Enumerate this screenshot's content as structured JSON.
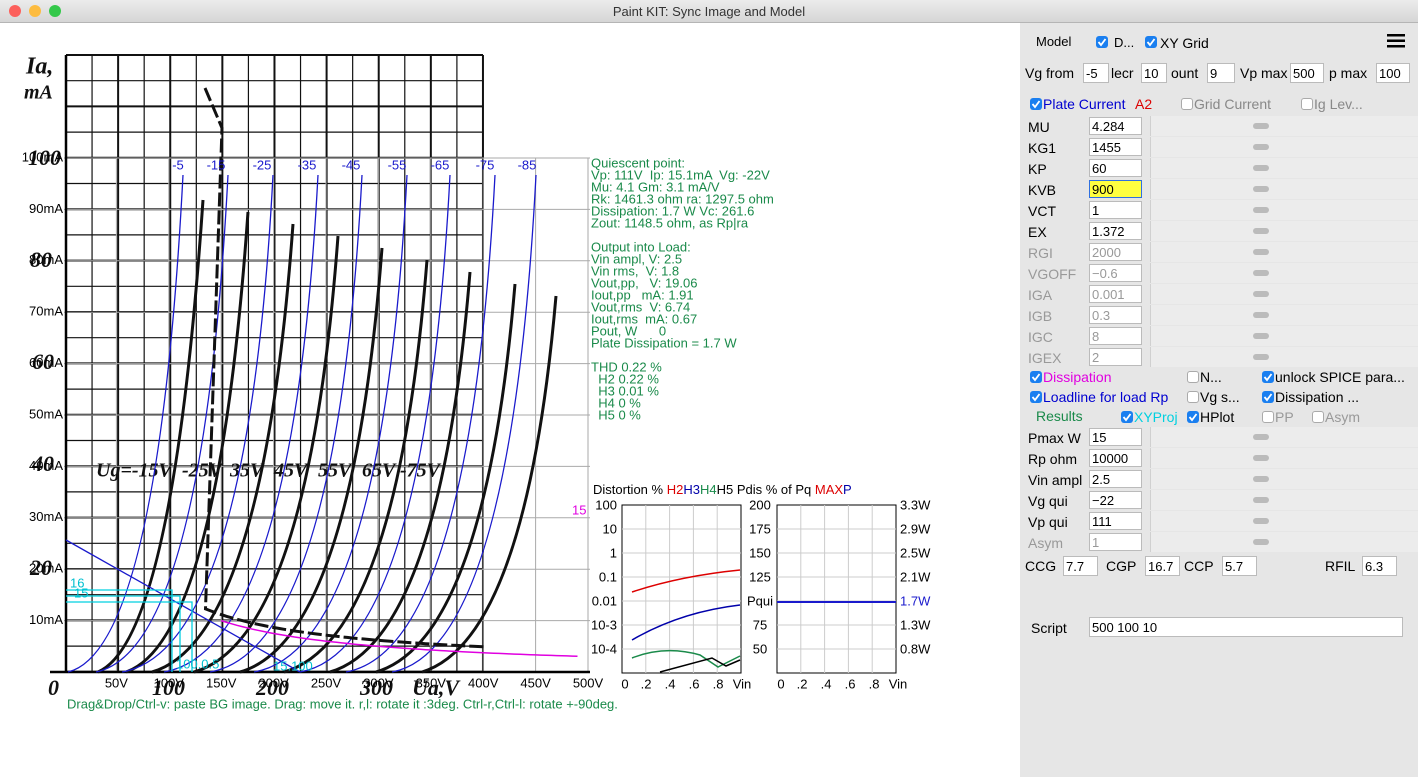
{
  "window": {
    "title": "Paint KIT: Sync Image and Model"
  },
  "plot": {
    "y_labels": [
      "100mA",
      "90mA",
      "80mA",
      "70mA",
      "60mA",
      "50mA",
      "40mA",
      "30mA",
      "20mA",
      "10mA"
    ],
    "x_labels": [
      "50V",
      "100V",
      "150V",
      "200V",
      "250V",
      "300V",
      "350V",
      "400V",
      "450V",
      "500V"
    ],
    "curve_labels": [
      "-5",
      "-15",
      "-25",
      "-35",
      "-45",
      "-55",
      "-65",
      "-75",
      "-85"
    ],
    "dissipation_label": "15",
    "scan_labels": {
      "ia": "Ia,",
      "ma": "mA",
      "y100": "100",
      "y80": "80",
      "y60": "60",
      "y40": "40",
      "y20": "20",
      "x0": "0",
      "x100": "100",
      "x200": "200",
      "x300": "300",
      "ua": "Ua,V",
      "ug": [
        "Ug=-15V",
        "-25V",
        "35V",
        "45V",
        "55V",
        "65V",
        "-75V"
      ]
    },
    "cyan_labels": [
      "16",
      "15",
      "100.0.5",
      "15.100"
    ],
    "info": [
      "Quiescent point:",
      "Vp: 111V  Ip: 15.1mA  Vg: -22V",
      "Mu: 4.1 Gm: 3.1 mA/V",
      "Rk: 1461.3 ohm ra: 1297.5 ohm",
      "Dissipation: 1.7 W Vc: 261.6",
      "Zout: 1148.5 ohm, as Rp|ra",
      "Output into Load:",
      "Vin ampl, V: 2.5",
      "Vin rms,  V: 1.8",
      "Vout,pp,   V: 19.06",
      "Iout,pp   mA: 1.91",
      "Vout,rms  V: 6.74",
      "Iout,rms  mA: 0.67",
      "Pout, W      0",
      "Plate Dissipation = 1.7 W",
      "THD 0.22 %",
      "  H2 0.22 %",
      "  H3 0.01 %",
      "  H4 0 %",
      "  H5 0 %"
    ],
    "hint": "Drag&Drop/Ctrl-v: paste BG image. Drag: move it. r,l: rotate it :3deg. Ctrl-r,Ctrl-l: rotate +-90deg."
  },
  "distortion": {
    "title": [
      {
        "text": "Distortion % ",
        "color": "#000"
      },
      {
        "text": "H2",
        "color": "#d00"
      },
      {
        "text": "H3",
        "color": "#00a"
      },
      {
        "text": "H4",
        "color": "#1a8a4a"
      },
      {
        "text": "H5",
        "color": "#000"
      },
      {
        "text": " Pdis % of Pq ",
        "color": "#000"
      },
      {
        "text": "MAX",
        "color": "#d00"
      },
      {
        "text": "P",
        "color": "#00a"
      }
    ],
    "left_ticks": [
      "100",
      "10",
      "1",
      "0.1",
      "0.01",
      "10-3",
      "10-4"
    ],
    "mid_ticks": [
      "200",
      "175",
      "150",
      "125",
      "Pqui",
      "75",
      "50"
    ],
    "right_ticks": [
      "3.3W",
      "2.9W",
      "2.5W",
      "2.1W",
      "1.7W",
      "1.3W",
      "0.8W"
    ],
    "x_ticks": [
      "0",
      ".2",
      ".4",
      ".6",
      ".8",
      "Vin"
    ]
  },
  "panel": {
    "model": "Model",
    "d": "D...",
    "xy": "XY Grid",
    "range": [
      {
        "label": "Vg from",
        "value": "-5"
      },
      {
        "label": "lecr",
        "value": "10"
      },
      {
        "label": "ount",
        "value": "9"
      },
      {
        "label": "Vp max",
        "value": "500"
      },
      {
        "label": "p max",
        "value": "100"
      }
    ],
    "curr_checks": [
      {
        "label": "Plate Current",
        "checked": true,
        "color": "#0000d0"
      },
      {
        "label": "Grid Current",
        "checked": false,
        "color": "#888"
      },
      {
        "label": "Ig Lev...",
        "checked": false,
        "color": "#888"
      }
    ],
    "a2": "A2",
    "params": [
      {
        "name": "MU",
        "value": "4.284",
        "disabled": false
      },
      {
        "name": "KG1",
        "value": "1455",
        "disabled": false
      },
      {
        "name": "KP",
        "value": "60",
        "disabled": false
      },
      {
        "name": "KVB",
        "value": "900",
        "disabled": false,
        "highlight": true
      },
      {
        "name": "VCT",
        "value": "1",
        "disabled": false
      },
      {
        "name": "EX",
        "value": "1.372",
        "disabled": false
      },
      {
        "name": "RGI",
        "value": "2000",
        "disabled": true
      },
      {
        "name": "VGOFF",
        "value": "−0.6",
        "disabled": true
      },
      {
        "name": "IGA",
        "value": "0.001",
        "disabled": true
      },
      {
        "name": "IGB",
        "value": "0.3",
        "disabled": true
      },
      {
        "name": "IGC",
        "value": "8",
        "disabled": true
      },
      {
        "name": "IGEX",
        "value": "2",
        "disabled": true
      }
    ],
    "opt_checks": [
      {
        "label": "Dissipation",
        "checked": true,
        "color": "#e000e0"
      },
      {
        "label": "N...",
        "checked": false,
        "color": "#000"
      },
      {
        "label": "unlock SPICE para...",
        "checked": true,
        "color": "#000"
      },
      {
        "label": "Loadline for load Rp",
        "checked": true,
        "color": "#0000d0"
      },
      {
        "label": "Vg s...",
        "checked": false,
        "color": "#000"
      },
      {
        "label": "Dissipation ...",
        "checked": true,
        "color": "#000"
      }
    ],
    "results": "Results",
    "res_checks": [
      {
        "label": "XYProj",
        "checked": true,
        "color": "#00d0e0"
      },
      {
        "label": "HPlot",
        "checked": true,
        "color": "#000"
      },
      {
        "label": "PP",
        "checked": false,
        "color": "#999"
      },
      {
        "label": "Asym",
        "checked": false,
        "color": "#999"
      }
    ],
    "loads": [
      {
        "name": "Pmax W",
        "value": "15",
        "disabled": false
      },
      {
        "name": "Rp ohm",
        "value": "10000",
        "disabled": false
      },
      {
        "name": "Vin ampl",
        "value": "2.5",
        "disabled": false
      },
      {
        "name": "Vg qui",
        "value": "−22",
        "disabled": false
      },
      {
        "name": "Vp qui",
        "value": "111",
        "disabled": false
      },
      {
        "name": "Asym",
        "value": "1",
        "disabled": true
      }
    ],
    "caps": [
      {
        "name": "CCG",
        "value": "7.7"
      },
      {
        "name": "CGP",
        "value": "16.7"
      },
      {
        "name": "CCP",
        "value": "5.7"
      },
      {
        "name": "RFIL",
        "value": "6.3"
      }
    ],
    "script_label": "Script",
    "script": "500 100 10"
  }
}
